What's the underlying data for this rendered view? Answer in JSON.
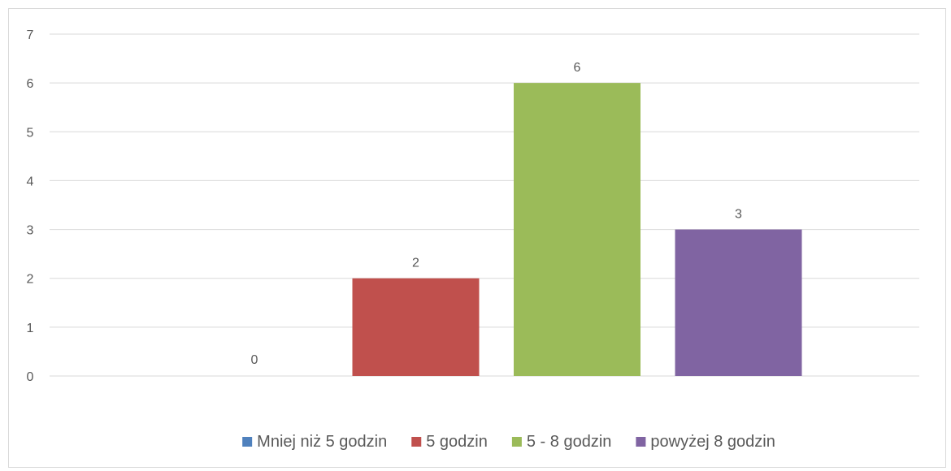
{
  "chart_data": {
    "type": "bar",
    "categories": [
      "Mniej niż 5 godzin",
      "5 godzin",
      "5 - 8 godzin",
      "powyżej 8 godzin"
    ],
    "values": [
      0,
      2,
      6,
      3
    ],
    "colors": [
      "#4f81bd",
      "#c0504d",
      "#9bbb59",
      "#8064a2"
    ],
    "ylim": [
      0,
      7
    ],
    "yticks": [
      0,
      1,
      2,
      3,
      4,
      5,
      6,
      7
    ],
    "grid": true,
    "legend_position": "bottom",
    "data_labels": true
  }
}
